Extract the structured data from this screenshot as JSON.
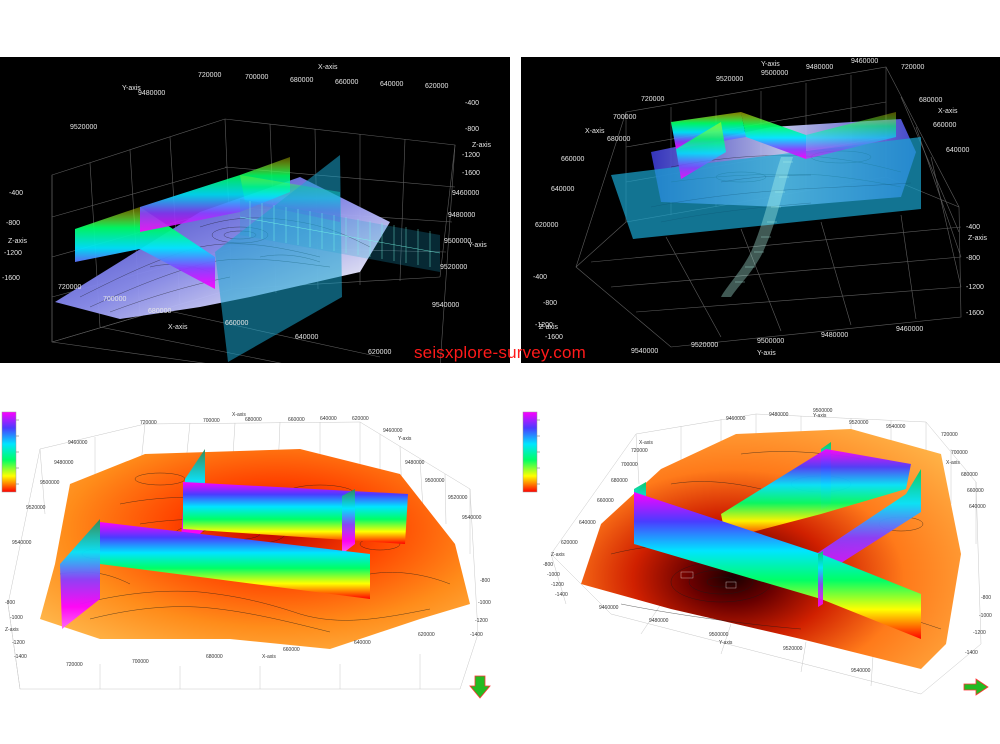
{
  "watermark": "seisxplore-survey.com",
  "panels": {
    "top_left": {
      "axis_titles": {
        "x": "X-axis",
        "y": "Y-axis",
        "z": "Z-axis"
      },
      "x_ticks_top": [
        "720000",
        "700000",
        "680000",
        "660000",
        "640000",
        "620000"
      ],
      "x_ticks_bottom": [
        "720000",
        "700000",
        "680000",
        "660000",
        "640000",
        "620000"
      ],
      "y_ticks_left": [
        "9480000",
        "9520000"
      ],
      "y_ticks_right": [
        "9460000",
        "9480000",
        "9500000",
        "9520000",
        "9540000"
      ],
      "z_ticks_left": [
        "-400",
        "-800",
        "-1200",
        "-1600"
      ],
      "z_ticks_right": [
        "-400",
        "-800",
        "-1200",
        "-1600"
      ]
    },
    "top_right": {
      "axis_titles": {
        "x": "X-axis",
        "y": "Y-axis",
        "z": "Z-axis"
      },
      "y_ticks_top": [
        "9520000",
        "9500000",
        "9480000",
        "9460000"
      ],
      "y_ticks_bottom": [
        "9540000",
        "9520000",
        "9500000",
        "9480000",
        "9460000"
      ],
      "x_ticks_left": [
        "720000",
        "700000",
        "680000",
        "660000",
        "640000",
        "620000"
      ],
      "x_ticks_right": [
        "720000",
        "680000",
        "660000",
        "640000"
      ],
      "z_ticks_left": [
        "-400",
        "-800",
        "-1200",
        "-1600"
      ],
      "z_ticks_right": [
        "-400",
        "-800",
        "-1200",
        "-1600"
      ]
    },
    "bottom_left": {
      "axis_titles": {
        "x": "X-axis",
        "y": "Y-axis",
        "z": "Z-axis"
      },
      "x_ticks_top": [
        "720000",
        "700000",
        "680000",
        "660000",
        "640000",
        "620000"
      ],
      "x_ticks_bottom": [
        "720000",
        "700000",
        "680000",
        "660000",
        "640000",
        "620000"
      ],
      "y_ticks_left": [
        "9460000",
        "9480000",
        "9500000",
        "9520000",
        "9540000"
      ],
      "y_ticks_right": [
        "9460000",
        "9480000",
        "9500000",
        "9520000",
        "9540000"
      ],
      "z_ticks_left": [
        "-800",
        "-1000",
        "-1200",
        "-1400"
      ],
      "z_ticks_right": [
        "-800",
        "-1000",
        "-1200",
        "-1400"
      ]
    },
    "bottom_right": {
      "axis_titles": {
        "x": "X-axis",
        "y": "Y-axis",
        "z": "Z-axis"
      },
      "y_ticks_top": [
        "9460000",
        "9480000",
        "9500000",
        "9520000",
        "9540000"
      ],
      "y_ticks_bottom": [
        "9460000",
        "9480000",
        "9500000",
        "9520000",
        "9540000"
      ],
      "x_ticks_left": [
        "720000",
        "700000",
        "680000",
        "660000",
        "640000",
        "620000"
      ],
      "x_ticks_right": [
        "720000",
        "700000",
        "680000",
        "660000",
        "640000"
      ],
      "z_ticks_left": [
        "-800",
        "-1000",
        "-1200",
        "-1400"
      ],
      "z_ticks_right": [
        "-800",
        "-1000",
        "-1200",
        "-1400"
      ]
    }
  },
  "colors": {
    "ramp_surface": [
      "#2a2db5",
      "#ffffff"
    ],
    "ramp_fault": [
      "#ff00ff",
      "#8a3cff",
      "#00e5ff",
      "#00ff66",
      "#ffff00"
    ],
    "ramp_horizon": [
      "#4a0000",
      "#c00000",
      "#ff4000",
      "#ff8c1a",
      "#ffb347"
    ],
    "seismic_plane": "#1aa5d0",
    "grid_dark": "#6b6b6b",
    "grid_light": "#c8c8c8",
    "arrow": "#22bb22",
    "watermark": "#ff1a1a"
  },
  "icons": {
    "nav_arrow_bottom_left": "down-arrow-icon",
    "nav_arrow_bottom_right": "right-arrow-icon"
  }
}
